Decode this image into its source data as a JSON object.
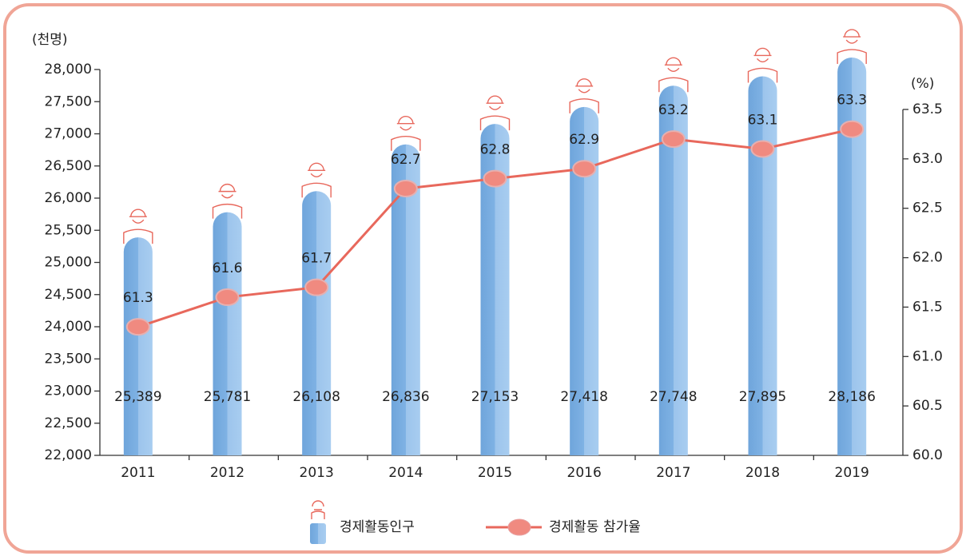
{
  "chart_data": {
    "type": "bar",
    "y_label": "(천명)",
    "y2_label": "(%)",
    "categories": [
      "2011",
      "2012",
      "2013",
      "2014",
      "2015",
      "2016",
      "2017",
      "2018",
      "2019"
    ],
    "series": [
      {
        "name": "경제활동인구",
        "type": "bar",
        "color": "#7aaee0",
        "values": [
          25389,
          25781,
          26108,
          26836,
          27153,
          27418,
          27748,
          27895,
          28186
        ],
        "value_labels": [
          "25,389",
          "25,781",
          "26,108",
          "26,836",
          "27,153",
          "27,418",
          "27,748",
          "27,895",
          "28,186"
        ]
      },
      {
        "name": "경제활동 참가율",
        "type": "line",
        "axis": "y2",
        "color": "#e8685c",
        "values": [
          61.3,
          61.6,
          61.7,
          62.7,
          62.8,
          62.9,
          63.2,
          63.1,
          63.3
        ]
      }
    ],
    "ylim": [
      22000,
      28000
    ],
    "yticks": [
      {
        "value": 22000,
        "label": "22,000"
      },
      {
        "value": 22500,
        "label": "22,500"
      },
      {
        "value": 23000,
        "label": "23,000"
      },
      {
        "value": 23500,
        "label": "23,500"
      },
      {
        "value": 24000,
        "label": "24,000"
      },
      {
        "value": 24500,
        "label": "24,500"
      },
      {
        "value": 25000,
        "label": "25,000"
      },
      {
        "value": 25500,
        "label": "25,500"
      },
      {
        "value": 26000,
        "label": "26,000"
      },
      {
        "value": 26500,
        "label": "26,500"
      },
      {
        "value": 27000,
        "label": "27,000"
      },
      {
        "value": 27500,
        "label": "27,500"
      },
      {
        "value": 28000,
        "label": "28,000"
      }
    ],
    "y2lim": [
      60,
      63.5
    ],
    "y2ticks": [
      {
        "value": 60,
        "label": "60.0"
      },
      60.5,
      {
        "value": 61,
        "label": "61.0"
      },
      61.5,
      {
        "value": 62,
        "label": "62.0"
      },
      62.5,
      {
        "value": 63,
        "label": "63.0"
      },
      63.5
    ]
  }
}
